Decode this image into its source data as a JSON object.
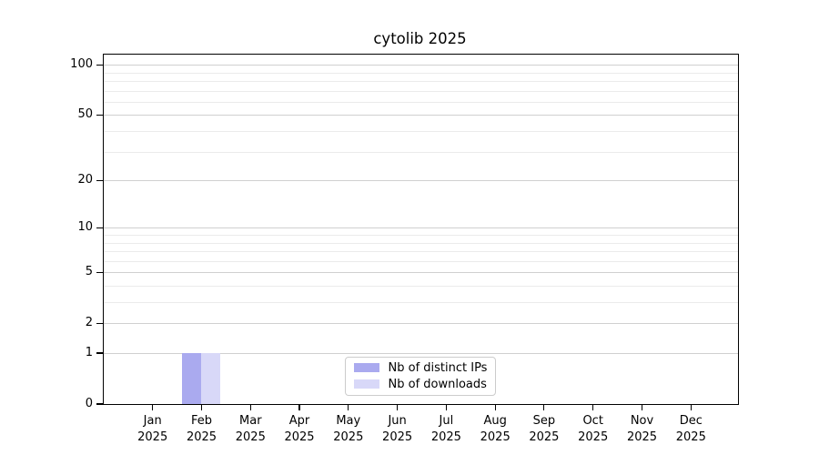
{
  "figure": {
    "background": "#ffffff"
  },
  "chart_data": {
    "type": "bar",
    "title": "cytolib 2025",
    "x_year": "2025",
    "categories": [
      "Jan",
      "Feb",
      "Mar",
      "Apr",
      "May",
      "Jun",
      "Jul",
      "Aug",
      "Sep",
      "Oct",
      "Nov",
      "Dec"
    ],
    "series": [
      {
        "name": "Nb of distinct IPs",
        "color": "#aaaaef",
        "values": [
          0,
          1,
          0,
          0,
          0,
          0,
          0,
          0,
          0,
          0,
          0,
          0
        ]
      },
      {
        "name": "Nb of downloads",
        "color": "#d8d8f8",
        "values": [
          0,
          1,
          0,
          0,
          0,
          0,
          0,
          0,
          0,
          0,
          0,
          0
        ]
      }
    ],
    "xlabel": "",
    "ylabel": "",
    "y_axis": {
      "scale": "log1p",
      "major_ticks": [
        0,
        1,
        2,
        5,
        10,
        20,
        50,
        100
      ],
      "minor_gridlines": [
        3,
        4,
        6,
        7,
        8,
        9,
        30,
        40,
        60,
        70,
        80,
        90
      ],
      "top_value": 115
    },
    "grid": "horizontal",
    "legend_position": "inside-lower-center",
    "colors": {
      "grid_major": "#d0d0d0",
      "grid_minor": "#ebebeb",
      "spine": "#000000",
      "legend_border": "#cccccc"
    }
  }
}
